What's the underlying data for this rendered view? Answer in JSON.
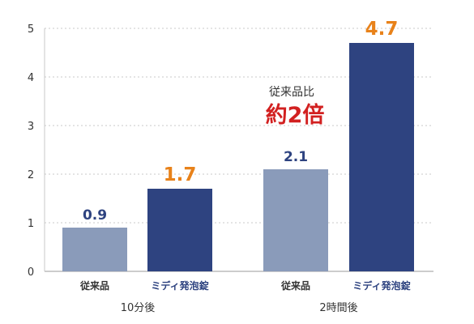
{
  "chart_data": {
    "type": "bar",
    "ylim": [
      0,
      5
    ],
    "yticks": [
      0,
      1,
      2,
      3,
      4,
      5
    ],
    "grid": true,
    "colors": {
      "conventional": "#8a9bba",
      "product": "#2e4380",
      "highlight_text": "#e8821a",
      "plain_value_text": "#2e4380",
      "annotation_accent": "#d22020",
      "product_label": "#2e4380",
      "conventional_label": "#333333"
    },
    "groups": [
      {
        "label": "10分後",
        "bars": [
          {
            "category": "従来品",
            "value": 0.9,
            "value_label": "0.9",
            "kind": "conventional"
          },
          {
            "category": "ミディ発泡錠",
            "value": 1.7,
            "value_label": "1.7",
            "kind": "product"
          }
        ]
      },
      {
        "label": "2時間後",
        "bars": [
          {
            "category": "従来品",
            "value": 2.1,
            "value_label": "2.1",
            "kind": "conventional"
          },
          {
            "category": "ミディ発泡錠",
            "value": 4.7,
            "value_label": "4.7",
            "kind": "product"
          }
        ]
      }
    ],
    "annotation": {
      "small_text": "従来品比",
      "big_text": "約2倍"
    }
  }
}
